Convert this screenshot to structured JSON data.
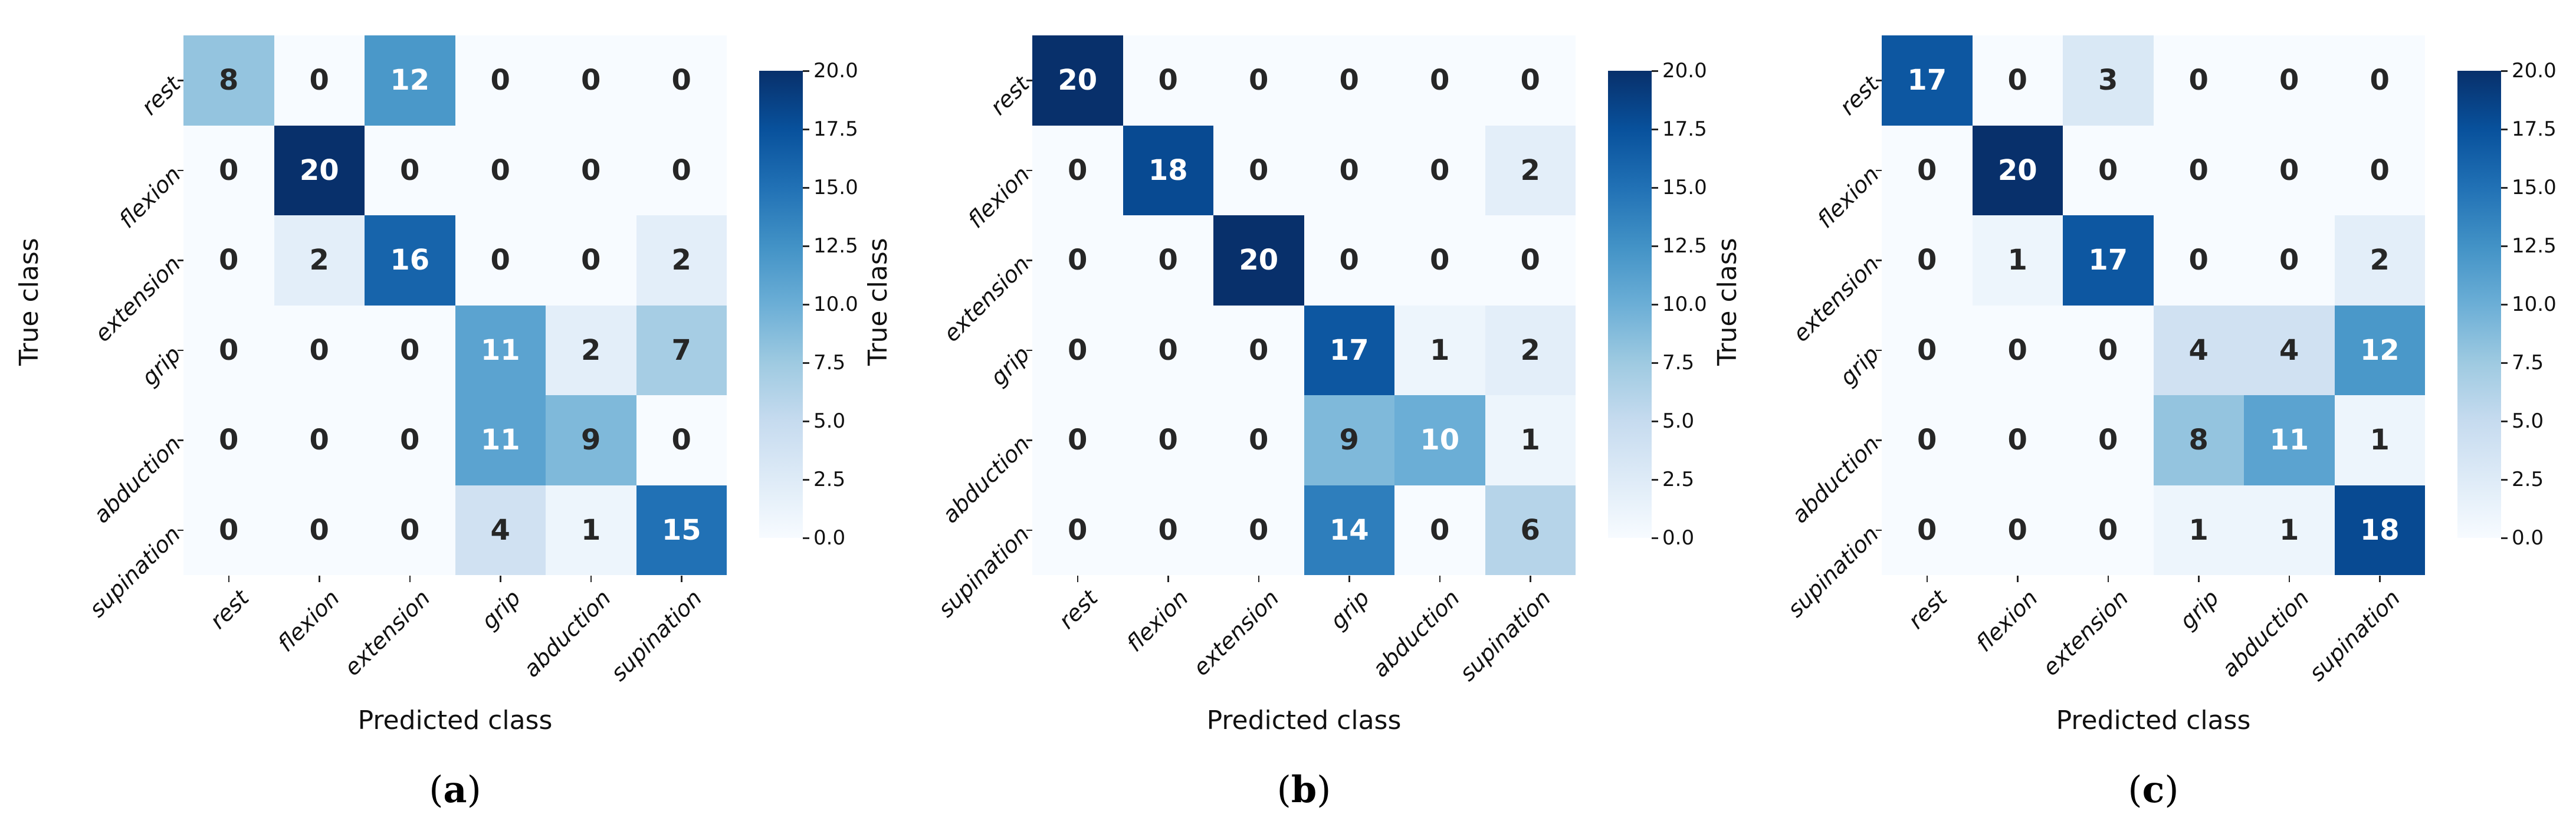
{
  "figure": {
    "background": "#ffffff",
    "colormap": "Blues",
    "colormap_anchors": [
      "#f7fbff",
      "#deebf7",
      "#c6dbef",
      "#9ecae1",
      "#6baed6",
      "#4292c6",
      "#2171b5",
      "#08519c",
      "#08306b"
    ],
    "annotation_dark_color": "#262626",
    "annotation_light_color": "#ffffff",
    "axis_text_color": "#111111"
  },
  "chart_data": [
    {
      "type": "heatmap",
      "caption_open": "(",
      "caption_letter": "a",
      "caption_close": ")",
      "xlabel": "Predicted class",
      "ylabel": "True class",
      "x_categories": [
        "rest",
        "flexion",
        "extension",
        "grip",
        "abduction",
        "supination"
      ],
      "y_categories": [
        "rest",
        "flexion",
        "extension",
        "grip",
        "abduction",
        "supination"
      ],
      "vmin": 0,
      "vmax": 20,
      "rows": [
        [
          8,
          0,
          12,
          0,
          0,
          0
        ],
        [
          0,
          20,
          0,
          0,
          0,
          0
        ],
        [
          0,
          2,
          16,
          0,
          0,
          2
        ],
        [
          0,
          0,
          0,
          11,
          2,
          7
        ],
        [
          0,
          0,
          0,
          11,
          9,
          0
        ],
        [
          0,
          0,
          0,
          4,
          1,
          15
        ]
      ],
      "colorbar_ticks_bottom_to_top": [
        "0.0",
        "2.5",
        "5.0",
        "7.5",
        "10.0",
        "12.5",
        "15.0",
        "17.5",
        "20.0"
      ]
    },
    {
      "type": "heatmap",
      "caption_open": "(",
      "caption_letter": "b",
      "caption_close": ")",
      "xlabel": "Predicted class",
      "ylabel": "True class",
      "x_categories": [
        "rest",
        "flexion",
        "extension",
        "grip",
        "abduction",
        "supination"
      ],
      "y_categories": [
        "rest",
        "flexion",
        "extension",
        "grip",
        "abduction",
        "supination"
      ],
      "vmin": 0,
      "vmax": 20,
      "rows": [
        [
          20,
          0,
          0,
          0,
          0,
          0
        ],
        [
          0,
          18,
          0,
          0,
          0,
          2
        ],
        [
          0,
          0,
          20,
          0,
          0,
          0
        ],
        [
          0,
          0,
          0,
          17,
          1,
          2
        ],
        [
          0,
          0,
          0,
          9,
          10,
          1
        ],
        [
          0,
          0,
          0,
          14,
          0,
          6
        ]
      ],
      "colorbar_ticks_bottom_to_top": [
        "0.0",
        "2.5",
        "5.0",
        "7.5",
        "10.0",
        "12.5",
        "15.0",
        "17.5",
        "20.0"
      ]
    },
    {
      "type": "heatmap",
      "caption_open": "(",
      "caption_letter": "c",
      "caption_close": ")",
      "xlabel": "Predicted class",
      "ylabel": "True class",
      "x_categories": [
        "rest",
        "flexion",
        "extension",
        "grip",
        "abduction",
        "supination"
      ],
      "y_categories": [
        "rest",
        "flexion",
        "extension",
        "grip",
        "abduction",
        "supination"
      ],
      "vmin": 0,
      "vmax": 20,
      "rows": [
        [
          17,
          0,
          3,
          0,
          0,
          0
        ],
        [
          0,
          20,
          0,
          0,
          0,
          0
        ],
        [
          0,
          1,
          17,
          0,
          0,
          2
        ],
        [
          0,
          0,
          0,
          4,
          4,
          12
        ],
        [
          0,
          0,
          0,
          8,
          11,
          1
        ],
        [
          0,
          0,
          0,
          1,
          1,
          18
        ]
      ],
      "colorbar_ticks_bottom_to_top": [
        "0.0",
        "2.5",
        "5.0",
        "7.5",
        "10.0",
        "12.5",
        "15.0",
        "17.5",
        "20.0"
      ]
    }
  ]
}
